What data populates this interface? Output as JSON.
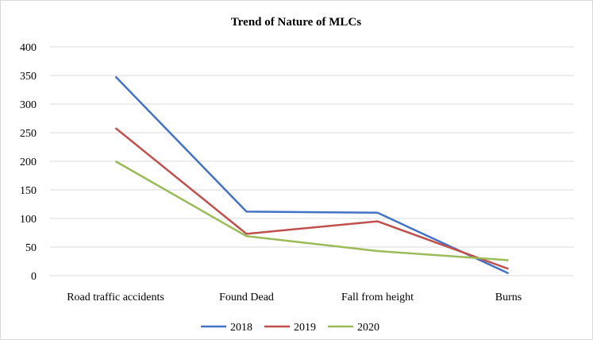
{
  "chart_data": {
    "type": "line",
    "title": "Trend of Nature of MLCs",
    "categories": [
      "Road traffic accidents",
      "Found Dead",
      "Fall from height",
      "Burns"
    ],
    "series": [
      {
        "name": "2018",
        "color": "#4472c4",
        "values": [
          348,
          112,
          110,
          4
        ]
      },
      {
        "name": "2019",
        "color": "#c0504d",
        "values": [
          258,
          73,
          95,
          12
        ]
      },
      {
        "name": "2020",
        "color": "#9bbb59",
        "values": [
          200,
          69,
          43,
          27
        ]
      }
    ],
    "ylim": [
      0,
      400
    ],
    "yticks": [
      0,
      50,
      100,
      150,
      200,
      250,
      300,
      350,
      400
    ],
    "grid": true,
    "legend": "bottom"
  }
}
